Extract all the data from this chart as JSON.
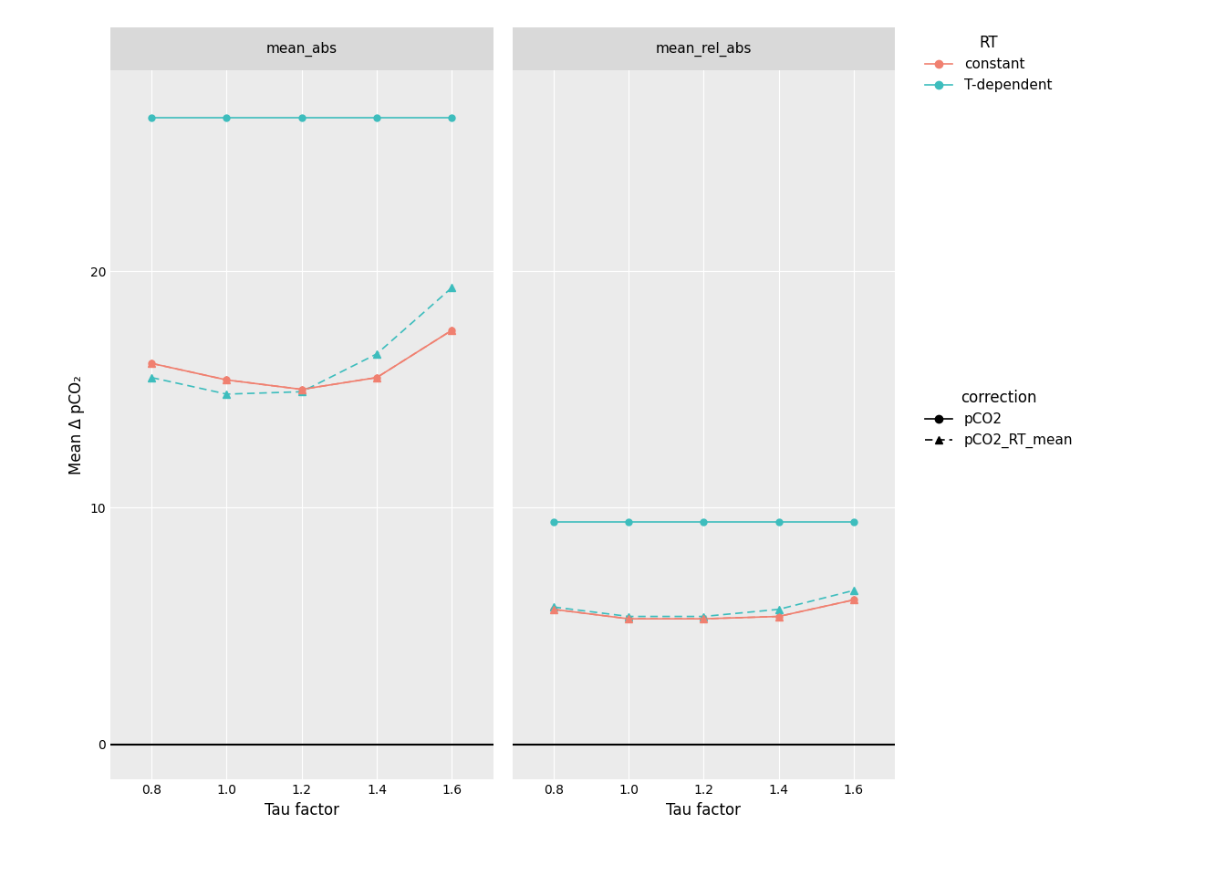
{
  "tau_factors": [
    0.8,
    1.0,
    1.2,
    1.4,
    1.6
  ],
  "panel_labels": [
    "mean_abs",
    "mean_rel_abs"
  ],
  "mean_abs": {
    "teal_solid": [
      26.5,
      26.5,
      26.5,
      26.5,
      26.5
    ],
    "teal_dashed": [
      15.5,
      14.8,
      14.9,
      16.5,
      19.3
    ],
    "salmon_solid": [
      16.1,
      15.4,
      15.0,
      15.5,
      17.5
    ],
    "salmon_dashed": [
      16.1,
      15.4,
      15.0,
      15.5,
      17.5
    ]
  },
  "mean_rel_abs": {
    "teal_solid": [
      9.4,
      9.4,
      9.4,
      9.4,
      9.4
    ],
    "teal_dashed": [
      5.8,
      5.4,
      5.4,
      5.7,
      6.5
    ],
    "salmon_solid": [
      5.7,
      5.3,
      5.3,
      5.4,
      6.1
    ],
    "salmon_dashed": [
      5.7,
      5.3,
      5.3,
      5.4,
      6.1
    ]
  },
  "teal_color": "#3dbdbd",
  "salmon_color": "#f08070",
  "background_panel": "#ebebeb",
  "background_strip": "#d9d9d9",
  "ylabel": "Mean Δ pCO₂",
  "xlabel": "Tau factor",
  "ylim": [
    -1.5,
    28.5
  ],
  "yticks": [
    0,
    10,
    20
  ],
  "grid_color": "#ffffff",
  "strip_label_fontsize": 11,
  "axis_fontsize": 12,
  "legend_fontsize": 11,
  "tick_fontsize": 10,
  "fig_bg": "#ffffff"
}
